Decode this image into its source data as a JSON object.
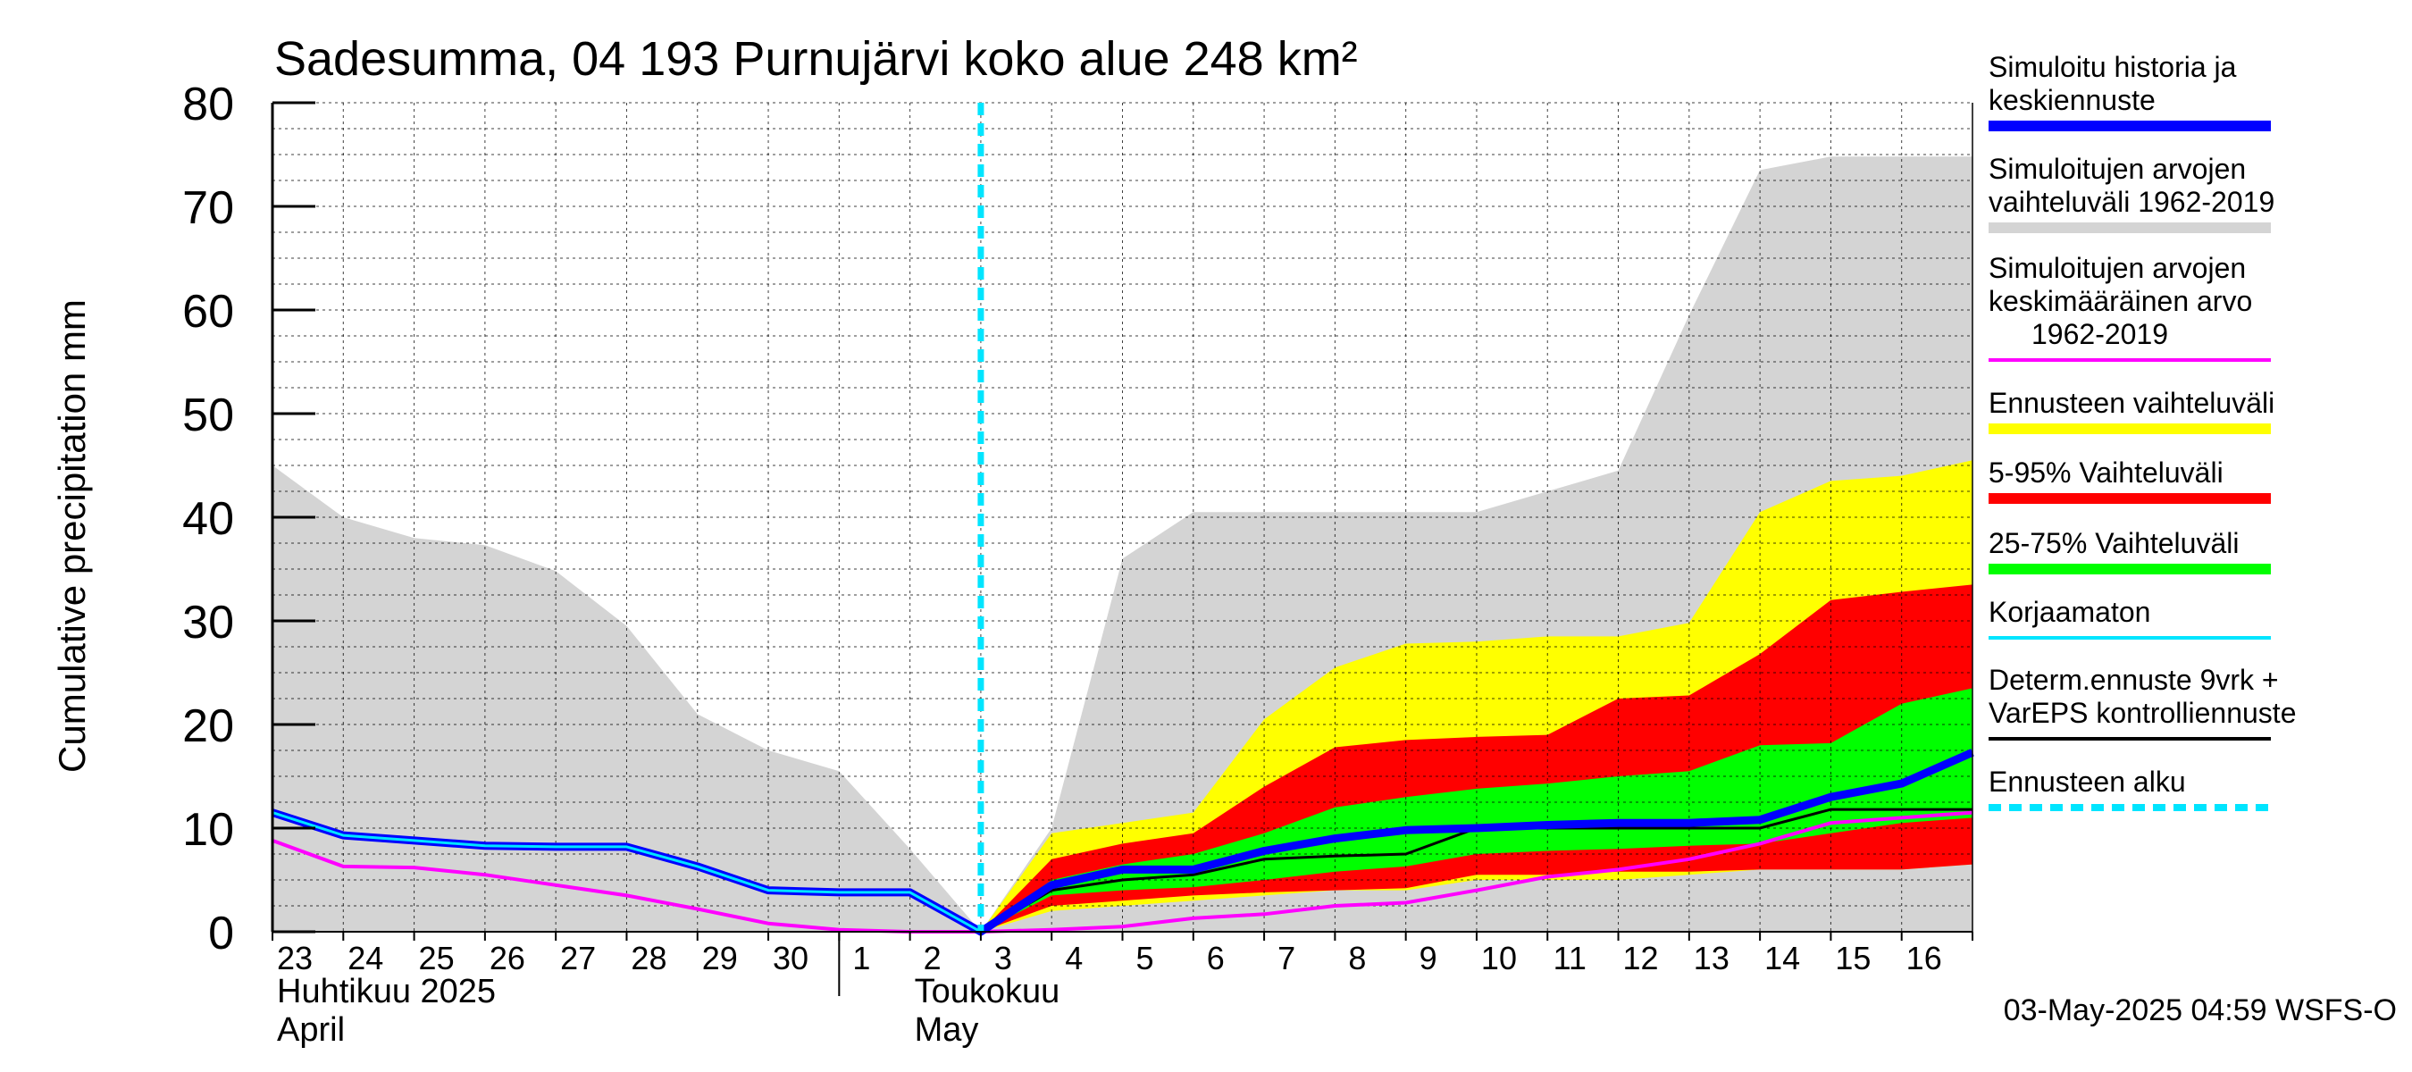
{
  "chart_data": {
    "type": "area",
    "title": "Sadesumma, 04 193 Purnujärvi koko alue 248 km²",
    "ylabel": "Cumulative precipitation   mm",
    "ylim": [
      0,
      80
    ],
    "yticks": [
      0,
      10,
      20,
      30,
      40,
      50,
      60,
      70,
      80
    ],
    "xlim": [
      0,
      24
    ],
    "day_labels": [
      "23",
      "24",
      "25",
      "26",
      "27",
      "28",
      "29",
      "30",
      "1",
      "2",
      "3",
      "4",
      "5",
      "6",
      "7",
      "8",
      "9",
      "10",
      "11",
      "12",
      "13",
      "14",
      "15",
      "16"
    ],
    "month_labels": [
      {
        "line1": "Huhtikuu  2025",
        "line2": "April",
        "day_index": 0
      },
      {
        "line1": "Toukokuu",
        "line2": "May",
        "day_index": 9
      }
    ],
    "forecast_start_x": 10,
    "timestamp": "03-May-2025 04:59 WSFS-O",
    "colors": {
      "history_range": "#d4d4d4",
      "forecast_range": "#ffff00",
      "p5_95": "#ff0000",
      "p25_75": "#00ff00",
      "simulated": "#0000ff",
      "uncorrected": "#00e5ff",
      "mean": "#ff00ff",
      "determ": "#000000",
      "forecast_start": "#00e5ff"
    },
    "series": {
      "history_range_upper": {
        "x": [
          0,
          1,
          2,
          3,
          4,
          5,
          6,
          7,
          8,
          9,
          10,
          11,
          12,
          13,
          14,
          15,
          16,
          17,
          18,
          19,
          20,
          21,
          22,
          23,
          24
        ],
        "y": [
          45,
          40,
          38,
          37.3,
          34.8,
          29.5,
          21,
          17.5,
          15.5,
          8,
          0,
          10,
          36,
          40.5,
          40.5,
          40.5,
          40.5,
          40.5,
          42.5,
          44.5,
          59.5,
          73.5,
          74.8,
          74.8,
          74.8
        ]
      },
      "forecast_range": {
        "x": [
          10,
          11,
          12,
          13,
          14,
          15,
          16,
          17,
          18,
          19,
          20,
          21,
          22,
          23,
          24
        ],
        "upper": [
          0,
          9.5,
          10.5,
          11.5,
          20.5,
          25.5,
          27.8,
          28,
          28.5,
          28.5,
          29.8,
          40.5,
          43.5,
          44,
          45.5
        ],
        "lower": [
          0,
          2,
          2.5,
          3,
          3.5,
          4,
          4,
          5,
          5,
          5,
          5.5,
          6,
          6,
          6,
          6.5
        ]
      },
      "p5_95": {
        "x": [
          10,
          11,
          12,
          13,
          14,
          15,
          16,
          17,
          18,
          19,
          20,
          21,
          22,
          23,
          24
        ],
        "upper": [
          0,
          7,
          8.5,
          9.5,
          14,
          17.8,
          18.5,
          18.8,
          19,
          22.5,
          22.8,
          26.8,
          32,
          32.8,
          33.5
        ],
        "lower": [
          0,
          2.5,
          3,
          3.5,
          3.8,
          4,
          4.2,
          5.5,
          5.5,
          5.8,
          5.8,
          6,
          6,
          6,
          6.5
        ]
      },
      "p25_75": {
        "x": [
          10,
          11,
          12,
          13,
          14,
          15,
          16,
          17,
          18,
          19,
          20,
          21,
          22,
          23,
          24
        ],
        "upper": [
          0,
          5,
          6.5,
          7.5,
          9.5,
          12,
          13,
          13.8,
          14.3,
          15,
          15.5,
          18,
          18.2,
          22,
          23.5
        ],
        "lower": [
          0,
          3.5,
          4,
          4.3,
          5,
          5.8,
          6.3,
          7.5,
          7.8,
          8,
          8.3,
          8.5,
          9.5,
          10.5,
          11
        ]
      },
      "simulated": {
        "x": [
          0,
          1,
          2,
          3,
          4,
          5,
          6,
          7,
          8,
          9,
          10,
          11,
          12,
          13,
          14,
          15,
          16,
          17,
          18,
          19,
          20,
          21,
          22,
          23,
          24
        ],
        "y": [
          11.5,
          9.3,
          8.8,
          8.3,
          8.2,
          8.2,
          6.3,
          4,
          3.8,
          3.8,
          0,
          4.5,
          6,
          6,
          7.8,
          9,
          9.8,
          10,
          10.3,
          10.5,
          10.5,
          10.8,
          13,
          14.3,
          17.3
        ]
      },
      "uncorrected": {
        "x": [
          0,
          1,
          2,
          3,
          4,
          5,
          6,
          7,
          8,
          9,
          10
        ],
        "y": [
          11.5,
          9.3,
          8.8,
          8.3,
          8.2,
          8.2,
          6.3,
          4,
          3.8,
          3.8,
          0
        ]
      },
      "mean": {
        "x": [
          0,
          1,
          2,
          3,
          4,
          5,
          6,
          7,
          8,
          9,
          10,
          11,
          12,
          13,
          14,
          15,
          16,
          17,
          18,
          19,
          20,
          21,
          22,
          23,
          24
        ],
        "y": [
          8.8,
          6.3,
          6.2,
          5.5,
          4.5,
          3.5,
          2.2,
          0.8,
          0.2,
          0,
          0,
          0.2,
          0.5,
          1.3,
          1.7,
          2.5,
          2.8,
          4,
          5.3,
          6,
          7,
          8.5,
          10.5,
          11,
          11.5
        ]
      },
      "determ": {
        "x": [
          10,
          11,
          12,
          13,
          14,
          15,
          16,
          17,
          18,
          19,
          20,
          21,
          22,
          23,
          24
        ],
        "y": [
          0,
          4,
          5,
          5.5,
          7,
          7.3,
          7.5,
          10,
          10,
          10,
          10,
          10,
          11.8,
          11.8,
          11.8
        ]
      }
    },
    "legend": [
      {
        "label": "Simuloitu historia ja keskiennuste",
        "lines": [
          "Simuloitu historia ja",
          "keskiennuste"
        ],
        "color": "#0000ff",
        "style": "thick"
      },
      {
        "label": "Simuloitujen arvojen vaihteluväli 1962-2019",
        "lines": [
          "Simuloitujen arvojen",
          "vaihteluväli 1962-2019"
        ],
        "color": "#d4d4d4",
        "style": "thick"
      },
      {
        "label": "Simuloitujen arvojen keskimääräinen arvo 1962-2019",
        "lines": [
          "Simuloitujen arvojen",
          "keskimääräinen arvo",
          "1962-2019"
        ],
        "color": "#ff00ff",
        "style": "thin"
      },
      {
        "label": "Ennusteen vaihteluväli",
        "lines": [
          "Ennusteen vaihteluväli"
        ],
        "color": "#ffff00",
        "style": "thick"
      },
      {
        "label": "5-95% Vaihteluväli",
        "lines": [
          "5-95% Vaihteluväli"
        ],
        "color": "#ff0000",
        "style": "thick"
      },
      {
        "label": "25-75% Vaihteluväli",
        "lines": [
          "25-75% Vaihteluväli"
        ],
        "color": "#00ff00",
        "style": "thick"
      },
      {
        "label": "Korjaamaton",
        "lines": [
          "Korjaamaton"
        ],
        "color": "#00e5ff",
        "style": "thin"
      },
      {
        "label": "Determ.ennuste 9vrk + VarEPS kontrolliennuste",
        "lines": [
          "Determ.ennuste 9vrk +",
          "VarEPS kontrolliennuste"
        ],
        "color": "#000000",
        "style": "thin"
      },
      {
        "label": "Ennusteen alku",
        "lines": [
          "Ennusteen alku"
        ],
        "color": "#00e5ff",
        "style": "dashed"
      }
    ]
  }
}
